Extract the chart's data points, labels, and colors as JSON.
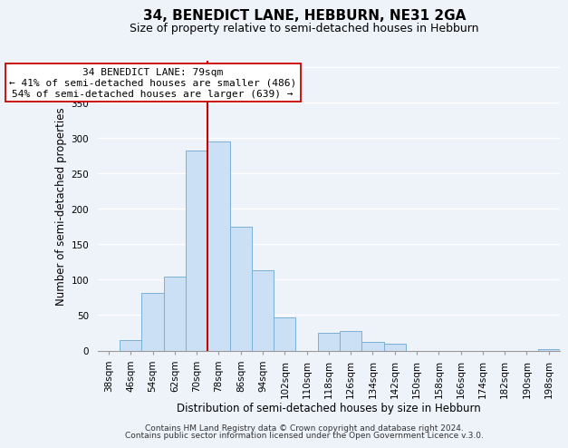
{
  "title": "34, BENEDICT LANE, HEBBURN, NE31 2GA",
  "subtitle": "Size of property relative to semi-detached houses in Hebburn",
  "xlabel": "Distribution of semi-detached houses by size in Hebburn",
  "ylabel": "Number of semi-detached properties",
  "footer_line1": "Contains HM Land Registry data © Crown copyright and database right 2024.",
  "footer_line2": "Contains public sector information licensed under the Open Government Licence v.3.0.",
  "bar_labels": [
    "38sqm",
    "46sqm",
    "54sqm",
    "62sqm",
    "70sqm",
    "78sqm",
    "86sqm",
    "94sqm",
    "102sqm",
    "110sqm",
    "118sqm",
    "126sqm",
    "134sqm",
    "142sqm",
    "150sqm",
    "158sqm",
    "166sqm",
    "174sqm",
    "182sqm",
    "190sqm",
    "198sqm"
  ],
  "bar_values": [
    0,
    15,
    82,
    105,
    283,
    295,
    175,
    113,
    47,
    0,
    25,
    28,
    12,
    10,
    0,
    0,
    0,
    0,
    0,
    0,
    2
  ],
  "bar_color": "#cce0f5",
  "bar_edge_color": "#7ab0d4",
  "vline_color": "#cc0000",
  "annotation_title": "34 BENEDICT LANE: 79sqm",
  "annotation_line1": "← 41% of semi-detached houses are smaller (486)",
  "annotation_line2": "54% of semi-detached houses are larger (639) →",
  "annotation_box_color": "#ffffff",
  "annotation_box_edge": "#cc0000",
  "ylim": [
    0,
    410
  ],
  "background_color": "#eef2f9",
  "grid_color": "#ffffff",
  "title_fontsize": 11,
  "subtitle_fontsize": 9,
  "axis_label_fontsize": 8.5,
  "tick_fontsize": 7.5,
  "annotation_fontsize": 8,
  "footer_fontsize": 6.5
}
